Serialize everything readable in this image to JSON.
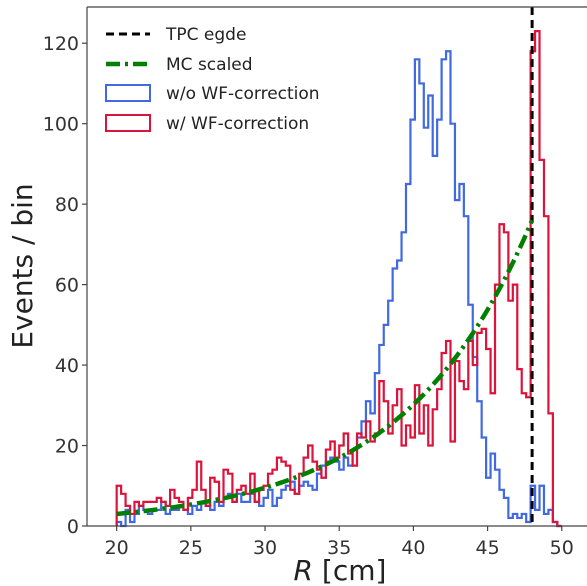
{
  "chart_data": {
    "type": "histogram",
    "title": "",
    "xlabel_italic": "R",
    "xlabel_unit": "[cm]",
    "ylabel": "Events / bin",
    "xlim": [
      18,
      51.7
    ],
    "ylim": [
      0,
      129
    ],
    "xticks": [
      20,
      25,
      30,
      35,
      40,
      45,
      50
    ],
    "yticks": [
      0,
      20,
      40,
      60,
      80,
      100,
      120
    ],
    "grid": false,
    "legend_position": "top-left",
    "bin_edges": {
      "start": 20,
      "step": 0.3,
      "count": 100
    },
    "series": [
      {
        "name": "w/o WF-correction",
        "kind": "step",
        "color": "#4169e1",
        "values": [
          1,
          0,
          4,
          1,
          3,
          5,
          4,
          3,
          4,
          4,
          6,
          3,
          4,
          4,
          5,
          4,
          3,
          5,
          4,
          6,
          5,
          4,
          6,
          5,
          7,
          8,
          6,
          8,
          6,
          6,
          8,
          6,
          5,
          7,
          9,
          5,
          7,
          9,
          10,
          11,
          8,
          10,
          11,
          10,
          9,
          13,
          15,
          16,
          17,
          16,
          14,
          17,
          15,
          19,
          22,
          26,
          31,
          28,
          38,
          45,
          50,
          56,
          64,
          66,
          73,
          85,
          101,
          116,
          110,
          99,
          107,
          92,
          101,
          116,
          118,
          100,
          81,
          85,
          77,
          55,
          42,
          31,
          22,
          12,
          18,
          14,
          9,
          7,
          2,
          3,
          2,
          3,
          1,
          10,
          4,
          10,
          3,
          4,
          1,
          0
        ]
      },
      {
        "name": "w/ WF-correction",
        "kind": "step",
        "color": "#dc143c",
        "values": [
          10,
          8,
          5,
          3,
          6,
          5,
          6,
          6,
          6,
          7,
          6,
          5,
          9,
          7,
          6,
          4,
          7,
          9,
          16,
          9,
          5,
          12,
          11,
          6,
          14,
          13,
          6,
          9,
          10,
          8,
          13,
          6,
          9,
          10,
          13,
          14,
          17,
          16,
          15,
          9,
          8,
          13,
          17,
          20,
          16,
          14,
          12,
          19,
          21,
          17,
          20,
          23,
          18,
          15,
          23,
          22,
          26,
          21,
          23,
          36,
          31,
          23,
          30,
          34,
          20,
          25,
          22,
          35,
          23,
          30,
          20,
          29,
          34,
          43,
          46,
          21,
          41,
          36,
          34,
          46,
          40,
          48,
          49,
          44,
          33,
          60,
          75,
          73,
          56,
          60,
          39,
          33,
          32,
          118,
          123,
          91,
          77,
          28,
          1,
          0
        ]
      },
      {
        "name": "MC scaled",
        "kind": "curve",
        "color": "#008000",
        "x_range": [
          20,
          48
        ],
        "model": "exponential",
        "y_at_start": 3,
        "y_at_end": 76
      }
    ],
    "vertical_line": {
      "name": "TPC egde",
      "x": 48,
      "color": "#000000",
      "style": "dashed"
    }
  }
}
